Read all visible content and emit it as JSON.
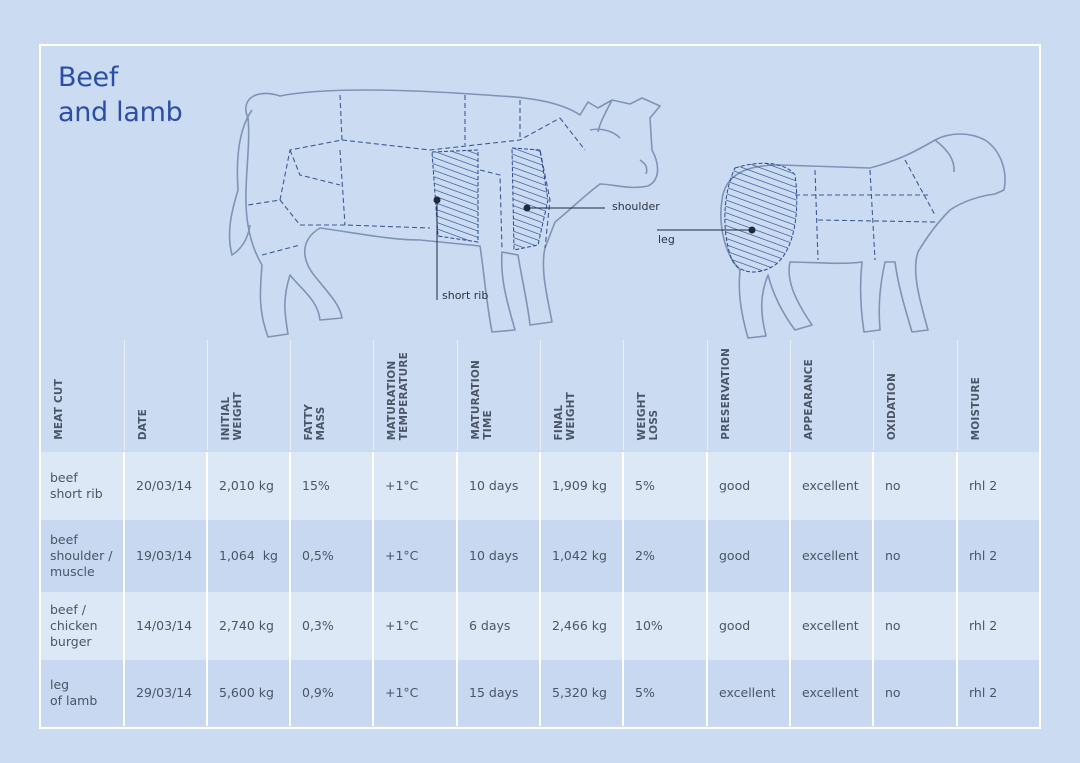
{
  "title_line1": "Beef",
  "title_line2": "and lamb",
  "labels": {
    "shoulder": "shoulder",
    "short_rib": "short rib",
    "leg": "leg"
  },
  "columns": [
    "MEAT CUT",
    "DATE",
    "INITIAL\nWEIGHT",
    "FATTY\nMASS",
    "MATURATION\nTEMPERATURE",
    "MATURATION\nTIME",
    "FINAL\nWEIGHT",
    "WEIGHT\nLOSS",
    "PRESERVATION",
    "APPEARANCE",
    "OXIDATION",
    "MOISTURE"
  ],
  "rows": [
    [
      "beef\nshort rib",
      "20/03/14",
      "2,010 kg",
      "15%",
      "+1°C",
      "10 days",
      "1,909 kg",
      "5%",
      "good",
      "excellent",
      "no",
      "rhl 2"
    ],
    [
      "beef\nshoulder /\nmuscle",
      "19/03/14",
      "1,064  kg",
      "0,5%",
      "+1°C",
      "10 days",
      "1,042 kg",
      "2%",
      "good",
      "excellent",
      "no",
      "rhl 2"
    ],
    [
      "beef /\nchicken\nburger",
      "14/03/14",
      "2,740 kg",
      "0,3%",
      "+1°C",
      "6 days",
      "2,466 kg",
      "10%",
      "good",
      "excellent",
      "no",
      "rhl 2"
    ],
    [
      "leg\nof lamb",
      "29/03/14",
      "5,600 kg",
      "0,9%",
      "+1°C",
      "15 days",
      "5,320 kg",
      "5%",
      "excellent",
      "excellent",
      "no",
      "rhl 2"
    ]
  ],
  "colors": {
    "background": "#cbdcf2",
    "title": "#2c4fa3",
    "line_art": "#7f93b4",
    "highlight": "#2a4a8f"
  }
}
